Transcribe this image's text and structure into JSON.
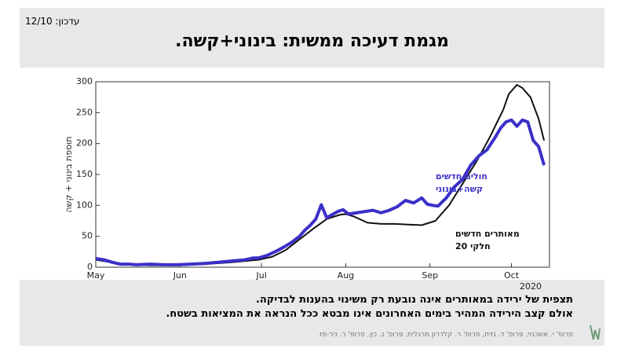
{
  "header": {
    "update": "עדכון: 12/10",
    "title": "מגמת דעיכה ממשית: בינוני+קשה."
  },
  "chart_data": {
    "type": "line",
    "ylabel": "תוספת בינוני + קשה",
    "x_note": "2020",
    "xlim": [
      0,
      167
    ],
    "xticks": [
      {
        "value": 0,
        "label": "May"
      },
      {
        "value": 31,
        "label": "Jun"
      },
      {
        "value": 61,
        "label": "Jul"
      },
      {
        "value": 92,
        "label": "Aug"
      },
      {
        "value": 123,
        "label": "Sep"
      },
      {
        "value": 153,
        "label": "Oct"
      }
    ],
    "ylim": [
      0,
      300
    ],
    "yticks": [
      0,
      50,
      100,
      150,
      200,
      250,
      300
    ],
    "series": [
      {
        "color": "#3b2fc9",
        "x": [
          0,
          3,
          6,
          9,
          12,
          15,
          20,
          25,
          30,
          35,
          40,
          45,
          50,
          55,
          58,
          60,
          63,
          66,
          69,
          72,
          75,
          77,
          79,
          81,
          83,
          85,
          87,
          89,
          91,
          93,
          96,
          99,
          102,
          105,
          108,
          111,
          114,
          117,
          120,
          122,
          124,
          126,
          129,
          132,
          135,
          138,
          141,
          144,
          147,
          149,
          151,
          153,
          155,
          157,
          159,
          161,
          163,
          165
        ],
        "values": [
          14,
          12,
          8,
          5,
          5,
          4,
          5,
          4,
          4,
          5,
          6,
          8,
          10,
          12,
          15,
          15,
          19,
          25,
          32,
          40,
          50,
          60,
          68,
          78,
          101,
          80,
          85,
          90,
          93,
          86,
          88,
          90,
          92,
          88,
          92,
          98,
          108,
          104,
          112,
          102,
          100,
          99,
          112,
          130,
          142,
          165,
          180,
          190,
          210,
          225,
          235,
          238,
          228,
          238,
          235,
          205,
          195,
          165
        ]
      },
      {
        "color": "#111111",
        "x": [
          0,
          10,
          20,
          30,
          40,
          50,
          60,
          65,
          70,
          75,
          80,
          85,
          90,
          92,
          95,
          100,
          105,
          110,
          115,
          120,
          125,
          130,
          135,
          140,
          145,
          150,
          152,
          155,
          157,
          160,
          163,
          165
        ],
        "values": [
          12,
          5,
          3,
          3,
          5,
          8,
          12,
          17,
          28,
          45,
          62,
          78,
          85,
          86,
          82,
          72,
          70,
          70,
          69,
          68,
          75,
          100,
          135,
          170,
          210,
          255,
          280,
          295,
          290,
          275,
          240,
          205
        ]
      }
    ],
    "annotations": [
      {
        "lines": [
          "חולים חדשים",
          "קשה+בינוני"
        ],
        "color": "#3b2fc9"
      },
      {
        "lines": [
          "מאותרים חדשים",
          "חלקי 20"
        ],
        "color": "#111111"
      }
    ]
  },
  "footer": {
    "lines": [
      "תצפית של ירידה במאותרים אינה נובעת רק משינוי בהענות לבדיקה.",
      "אולם קצב הירידה המהיר בימים האחרונים אינו מבטא ככל הנראה את המציאות בשטח."
    ],
    "credits": "פרופ' י. אשכנזי, פרופ' ד. גזית, פרופ' ר. קלדרון מרגלית, פרופ' נ. כץ, פרופ' ר. ניר-פז."
  }
}
